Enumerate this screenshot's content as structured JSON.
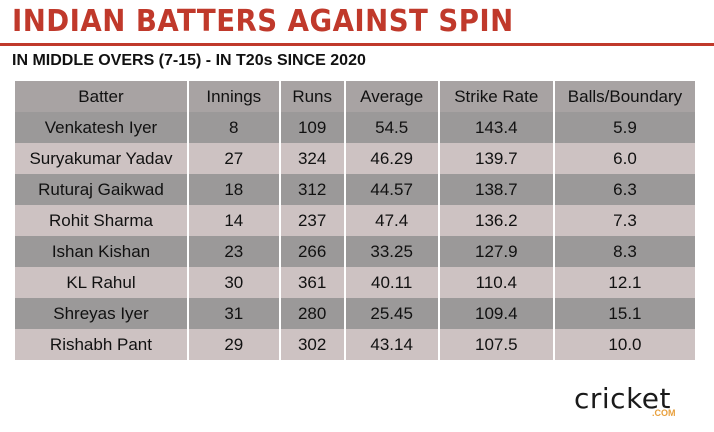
{
  "title": "INDIAN BATTERS AGAINST SPIN",
  "subtitle": "IN MIDDLE OVERS (7-15) - IN T20s SINCE 2020",
  "colors": {
    "title": "#c0392b",
    "header_bg": "#a8a3a3",
    "row_dark": "#9b9999",
    "row_light": "#cdc2c2"
  },
  "chart_data": {
    "type": "table",
    "columns": [
      "Batter",
      "Innings",
      "Runs",
      "Average",
      "Strike Rate",
      "Balls/Boundary"
    ],
    "rows": [
      [
        "Venkatesh Iyer",
        "8",
        "109",
        "54.5",
        "143.4",
        "5.9"
      ],
      [
        "Suryakumar Yadav",
        "27",
        "324",
        "46.29",
        "139.7",
        "6.0"
      ],
      [
        "Ruturaj Gaikwad",
        "18",
        "312",
        "44.57",
        "138.7",
        "6.3"
      ],
      [
        "Rohit Sharma",
        "14",
        "237",
        "47.4",
        "136.2",
        "7.3"
      ],
      [
        "Ishan Kishan",
        "23",
        "266",
        "33.25",
        "127.9",
        "8.3"
      ],
      [
        "KL Rahul",
        "30",
        "361",
        "40.11",
        "110.4",
        "12.1"
      ],
      [
        "Shreyas Iyer",
        "31",
        "280",
        "25.45",
        "109.4",
        "15.1"
      ],
      [
        "Rishabh Pant",
        "29",
        "302",
        "43.14",
        "107.5",
        "10.0"
      ]
    ]
  },
  "logo": {
    "word_start": "cricket",
    "word_end": "",
    "suffix": ".COM",
    "icon": "cricket-ball-icon"
  }
}
